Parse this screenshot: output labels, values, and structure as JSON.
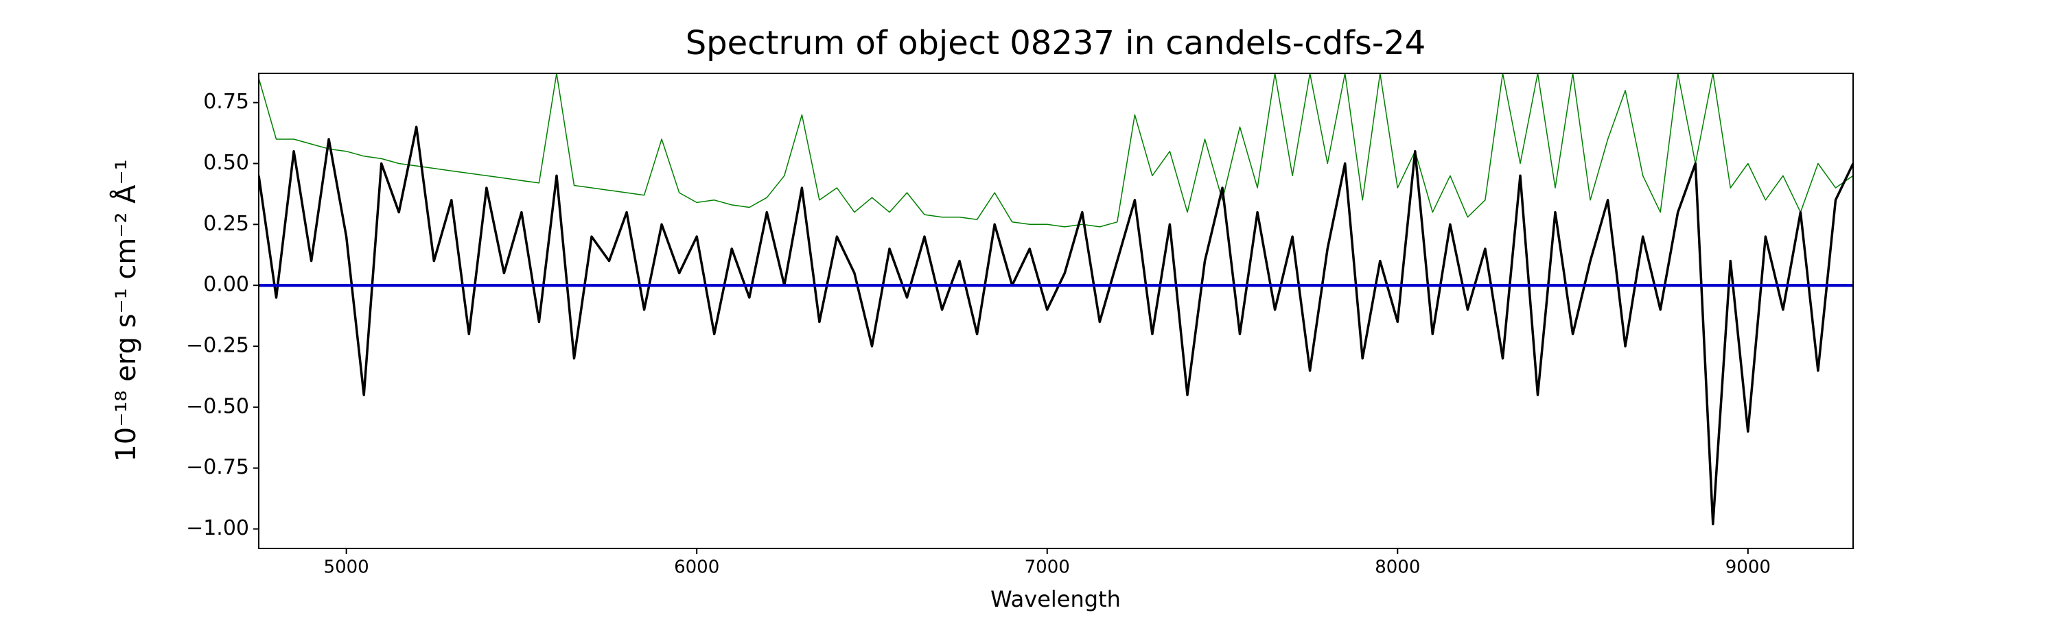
{
  "chart_data": {
    "type": "line",
    "title": "Spectrum of object 08237 in candels-cdfs-24",
    "xlabel": "Wavelength",
    "ylabel": "10⁻¹⁸ erg s⁻¹ cm⁻² Å⁻¹",
    "x": [
      4750,
      4800,
      4850,
      4900,
      4950,
      5000,
      5050,
      5100,
      5150,
      5200,
      5250,
      5300,
      5350,
      5400,
      5450,
      5500,
      5550,
      5600,
      5650,
      5700,
      5750,
      5800,
      5850,
      5900,
      5950,
      6000,
      6050,
      6100,
      6150,
      6200,
      6250,
      6300,
      6350,
      6400,
      6450,
      6500,
      6550,
      6600,
      6650,
      6700,
      6750,
      6800,
      6850,
      6900,
      6950,
      7000,
      7050,
      7100,
      7150,
      7200,
      7250,
      7300,
      7350,
      7400,
      7450,
      7500,
      7550,
      7600,
      7650,
      7700,
      7750,
      7800,
      7850,
      7900,
      7950,
      8000,
      8050,
      8100,
      8150,
      8200,
      8250,
      8300,
      8350,
      8400,
      8450,
      8500,
      8550,
      8600,
      8650,
      8700,
      8750,
      8800,
      8850,
      8900,
      8950,
      9000,
      9050,
      9100,
      9150,
      9200,
      9250,
      9300
    ],
    "series": [
      {
        "color": "#008000",
        "width": 1.5,
        "values": [
          0.85,
          0.6,
          0.6,
          0.58,
          0.56,
          0.55,
          0.53,
          0.52,
          0.5,
          0.49,
          0.48,
          0.47,
          0.46,
          0.45,
          0.44,
          0.43,
          0.42,
          0.87,
          0.41,
          0.4,
          0.39,
          0.38,
          0.37,
          0.6,
          0.38,
          0.34,
          0.35,
          0.33,
          0.32,
          0.36,
          0.45,
          0.7,
          0.35,
          0.4,
          0.3,
          0.36,
          0.3,
          0.38,
          0.29,
          0.28,
          0.28,
          0.27,
          0.38,
          0.26,
          0.25,
          0.25,
          0.24,
          0.25,
          0.24,
          0.26,
          0.7,
          0.45,
          0.55,
          0.3,
          0.6,
          0.35,
          0.65,
          0.4,
          0.87,
          0.45,
          0.87,
          0.5,
          0.87,
          0.35,
          0.87,
          0.4,
          0.55,
          0.3,
          0.45,
          0.28,
          0.35,
          0.87,
          0.5,
          0.87,
          0.4,
          0.87,
          0.35,
          0.6,
          0.8,
          0.45,
          0.3,
          0.87,
          0.5,
          0.87,
          0.4,
          0.5,
          0.35,
          0.45,
          0.3,
          0.5,
          0.4,
          0.45
        ]
      },
      {
        "color": "#000000",
        "width": 3.5,
        "values": [
          0.45,
          -0.05,
          0.55,
          0.1,
          0.6,
          0.2,
          -0.45,
          0.5,
          0.3,
          0.65,
          0.1,
          0.35,
          -0.2,
          0.4,
          0.05,
          0.3,
          -0.15,
          0.45,
          -0.3,
          0.2,
          0.1,
          0.3,
          -0.1,
          0.25,
          0.05,
          0.2,
          -0.2,
          0.15,
          -0.05,
          0.3,
          0.0,
          0.4,
          -0.15,
          0.2,
          0.05,
          -0.25,
          0.15,
          -0.05,
          0.2,
          -0.1,
          0.1,
          -0.2,
          0.25,
          0.0,
          0.15,
          -0.1,
          0.05,
          0.3,
          -0.15,
          0.1,
          0.35,
          -0.2,
          0.25,
          -0.45,
          0.1,
          0.4,
          -0.2,
          0.3,
          -0.1,
          0.2,
          -0.35,
          0.15,
          0.5,
          -0.3,
          0.1,
          -0.15,
          0.55,
          -0.2,
          0.25,
          -0.1,
          0.15,
          -0.3,
          0.45,
          -0.45,
          0.3,
          -0.2,
          0.1,
          0.35,
          -0.25,
          0.2,
          -0.1,
          0.3,
          0.5,
          -0.98,
          0.1,
          -0.6,
          0.2,
          -0.1,
          0.3,
          -0.35,
          0.35,
          0.5
        ]
      },
      {
        "color": "#0000cc",
        "width": 4.5,
        "values": [
          0,
          0,
          0,
          0,
          0,
          0,
          0,
          0,
          0,
          0,
          0,
          0,
          0,
          0,
          0,
          0,
          0,
          0,
          0,
          0,
          0,
          0,
          0,
          0,
          0,
          0,
          0,
          0,
          0,
          0,
          0,
          0,
          0,
          0,
          0,
          0,
          0,
          0,
          0,
          0,
          0,
          0,
          0,
          0,
          0,
          0,
          0,
          0,
          0,
          0,
          0,
          0,
          0,
          0,
          0,
          0,
          0,
          0,
          0,
          0,
          0,
          0,
          0,
          0,
          0,
          0,
          0,
          0,
          0,
          0,
          0,
          0,
          0,
          0,
          0,
          0,
          0,
          0,
          0,
          0,
          0,
          0,
          0,
          0,
          0,
          0,
          0,
          0,
          0,
          0,
          0,
          0
        ]
      }
    ],
    "xlim": [
      4750,
      9300
    ],
    "ylim": [
      -1.08,
      0.87
    ],
    "xticks": [
      5000,
      6000,
      7000,
      8000,
      9000
    ],
    "yticks": [
      {
        "value": 0.75,
        "label": "0.75"
      },
      {
        "value": 0.5,
        "label": "0.50"
      },
      {
        "value": 0.25,
        "label": "0.25"
      },
      {
        "value": 0,
        "label": "0.00"
      },
      {
        "value": -0.25,
        "label": "−0.25"
      },
      {
        "value": -0.5,
        "label": "−0.50"
      },
      {
        "value": -0.75,
        "label": "−0.75"
      },
      {
        "value": -1.0,
        "label": "−1.00"
      }
    ],
    "grid": false
  }
}
